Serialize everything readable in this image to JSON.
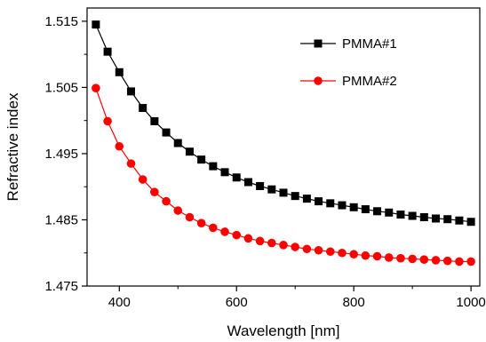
{
  "chart_data": {
    "type": "line",
    "title": "",
    "xlabel": "Wavelength [nm]",
    "ylabel": "Refractive index",
    "xlim": [
      345,
      1015
    ],
    "ylim": [
      1.475,
      1.517
    ],
    "x_ticks": [
      400,
      600,
      800,
      1000
    ],
    "x_tick_labels": [
      "400",
      "600",
      "800",
      "1000"
    ],
    "y_ticks": [
      1.475,
      1.485,
      1.495,
      1.505,
      1.515
    ],
    "y_tick_labels": [
      "1.475",
      "1.485",
      "1.495",
      "1.505",
      "1.515"
    ],
    "grid": false,
    "legend_position": "top-right",
    "x": [
      360,
      380,
      400,
      420,
      440,
      460,
      480,
      500,
      520,
      540,
      560,
      580,
      600,
      620,
      640,
      660,
      680,
      700,
      720,
      740,
      760,
      780,
      800,
      820,
      840,
      860,
      880,
      900,
      920,
      940,
      960,
      980,
      1000
    ],
    "series": [
      {
        "name": "PMMA#1",
        "color": "#000000",
        "marker": "square",
        "values": [
          1.5145,
          1.5104,
          1.5073,
          1.5044,
          1.5019,
          1.4999,
          1.4982,
          1.4966,
          1.4953,
          1.4941,
          1.4931,
          1.4922,
          1.4914,
          1.4907,
          1.4901,
          1.4896,
          1.4891,
          1.4886,
          1.4882,
          1.4878,
          1.4875,
          1.4872,
          1.4869,
          1.4866,
          1.4863,
          1.4861,
          1.4858,
          1.4856,
          1.4854,
          1.4852,
          1.4851,
          1.4849,
          1.4847
        ]
      },
      {
        "name": "PMMA#2",
        "color": "#ff0000",
        "marker": "circle",
        "values": [
          1.5049,
          1.4999,
          1.4961,
          1.4935,
          1.4911,
          1.4892,
          1.4878,
          1.4864,
          1.4854,
          1.4845,
          1.4838,
          1.4832,
          1.4827,
          1.4822,
          1.4818,
          1.4815,
          1.4812,
          1.4809,
          1.4806,
          1.4804,
          1.4802,
          1.48,
          1.4798,
          1.4796,
          1.4795,
          1.4793,
          1.4792,
          1.4791,
          1.479,
          1.4789,
          1.4788,
          1.4787,
          1.4787
        ]
      }
    ]
  }
}
